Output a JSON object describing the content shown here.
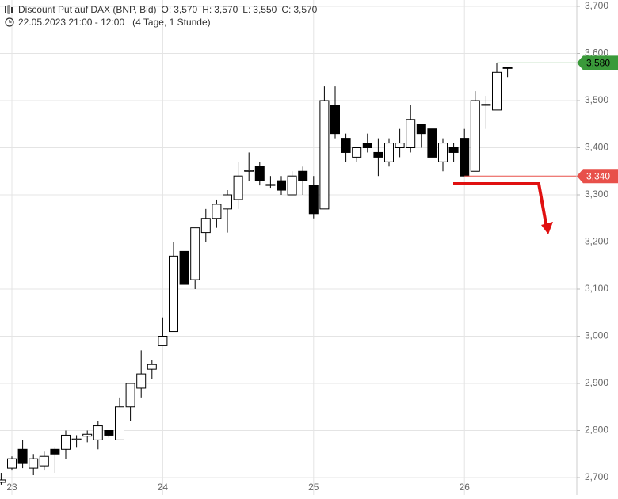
{
  "chart_data": {
    "type": "candlestick",
    "title": "Discount Put auf DAX (BNP, Bid)",
    "ohlc_summary": [
      {
        "name": "O:",
        "value": 3570,
        "label": "3,570"
      },
      {
        "name": "H:",
        "value": 3570,
        "label": "3,570"
      },
      {
        "name": "L:",
        "value": 3550,
        "label": "3,550"
      },
      {
        "name": "C:",
        "value": 3570,
        "label": "3,570"
      }
    ],
    "period": "22.05.2023 21:00 - 12:00",
    "span": "(4 Tage, 1 Stunde)",
    "categories": [
      null,
      "23",
      null,
      null,
      null,
      null,
      null,
      null,
      null,
      null,
      null,
      null,
      null,
      null,
      null,
      "24",
      null,
      null,
      null,
      null,
      null,
      null,
      null,
      null,
      null,
      null,
      null,
      null,
      null,
      "25",
      null,
      null,
      null,
      null,
      null,
      null,
      null,
      null,
      null,
      null,
      null,
      null,
      null,
      "26",
      null,
      null,
      null,
      null
    ],
    "open": [
      2690,
      2720,
      2760,
      2720,
      2725,
      2760,
      2760,
      2780,
      2788,
      2780,
      2800,
      2780,
      2850,
      2890,
      2930,
      2980,
      3010,
      3180,
      3120,
      3220,
      3250,
      3270,
      3290,
      3350,
      3360,
      3320,
      3330,
      3300,
      3350,
      3320,
      3270,
      3490,
      3420,
      3380,
      3410,
      3390,
      3370,
      3400,
      3400,
      3450,
      3440,
      3370,
      3400,
      3420,
      3350,
      3490,
      3480,
      3570
    ],
    "high": [
      2710,
      2745,
      2780,
      2750,
      2755,
      2765,
      2800,
      2790,
      2800,
      2820,
      2800,
      2870,
      2900,
      2970,
      2950,
      3040,
      3200,
      3180,
      3230,
      3270,
      3290,
      3310,
      3370,
      3390,
      3370,
      3340,
      3340,
      3350,
      3360,
      3340,
      3530,
      3530,
      3430,
      3400,
      3430,
      3420,
      3420,
      3440,
      3490,
      3450,
      3440,
      3420,
      3410,
      3440,
      3520,
      3510,
      3580,
      3570
    ],
    "low": [
      2685,
      2715,
      2720,
      2705,
      2715,
      2710,
      2740,
      2765,
      2775,
      2760,
      2785,
      2780,
      2820,
      2870,
      2910,
      2980,
      3010,
      3110,
      3100,
      3200,
      3230,
      3220,
      3270,
      3330,
      3320,
      3315,
      3300,
      3300,
      3300,
      3250,
      3270,
      3420,
      3370,
      3370,
      3390,
      3340,
      3360,
      3380,
      3390,
      3400,
      3380,
      3350,
      3370,
      3340,
      3350,
      3440,
      3480,
      3550
    ],
    "close": [
      2695,
      2740,
      2730,
      2740,
      2745,
      2750,
      2790,
      2782,
      2792,
      2810,
      2790,
      2850,
      2900,
      2920,
      2940,
      3000,
      3170,
      3110,
      3230,
      3250,
      3280,
      3300,
      3340,
      3352,
      3330,
      3322,
      3310,
      3340,
      3330,
      3260,
      3500,
      3430,
      3390,
      3400,
      3400,
      3380,
      3410,
      3410,
      3460,
      3430,
      3380,
      3410,
      3390,
      3340,
      3500,
      3492,
      3560,
      3570
    ],
    "up_color": "#ffffff",
    "down_color": "#000000",
    "ylim": [
      2700,
      3700
    ],
    "yticks": [
      {
        "value": 2700,
        "label": "2,700"
      },
      {
        "value": 2800,
        "label": "2,800"
      },
      {
        "value": 2900,
        "label": "2,900"
      },
      {
        "value": 3000,
        "label": "3,000"
      },
      {
        "value": 3100,
        "label": "3,100"
      },
      {
        "value": 3200,
        "label": "3,200"
      },
      {
        "value": 3300,
        "label": "3,300"
      },
      {
        "value": 3400,
        "label": "3,400"
      },
      {
        "value": 3500,
        "label": "3,500"
      },
      {
        "value": 3600,
        "label": "3,600"
      },
      {
        "value": 3700,
        "label": "3,700"
      }
    ],
    "grid": true,
    "price_lines": [
      {
        "value": 3580,
        "label": "3,580",
        "color": "#3a9a3a",
        "from": 46
      },
      {
        "value": 3340,
        "label": "3,340",
        "color": "#e8504a",
        "from": 43
      }
    ]
  }
}
